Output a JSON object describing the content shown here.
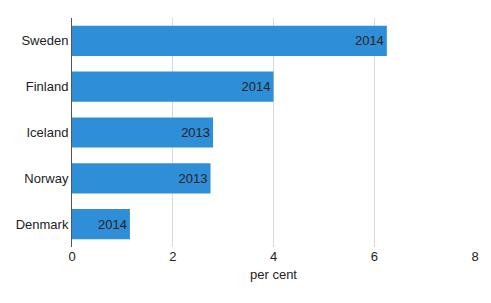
{
  "chart_data": {
    "type": "bar",
    "orientation": "horizontal",
    "categories": [
      "Sweden",
      "Finland",
      "Iceland",
      "Norway",
      "Denmark"
    ],
    "values": [
      6.25,
      4.0,
      2.8,
      2.75,
      1.15
    ],
    "annotations": [
      "2014",
      "2014",
      "2013",
      "2013",
      "2014"
    ],
    "color": "#2e8fd8",
    "xlabel": "per cent",
    "xlim": [
      0,
      8
    ],
    "xticks": [
      0,
      2,
      4,
      6,
      8
    ],
    "grid": true
  }
}
